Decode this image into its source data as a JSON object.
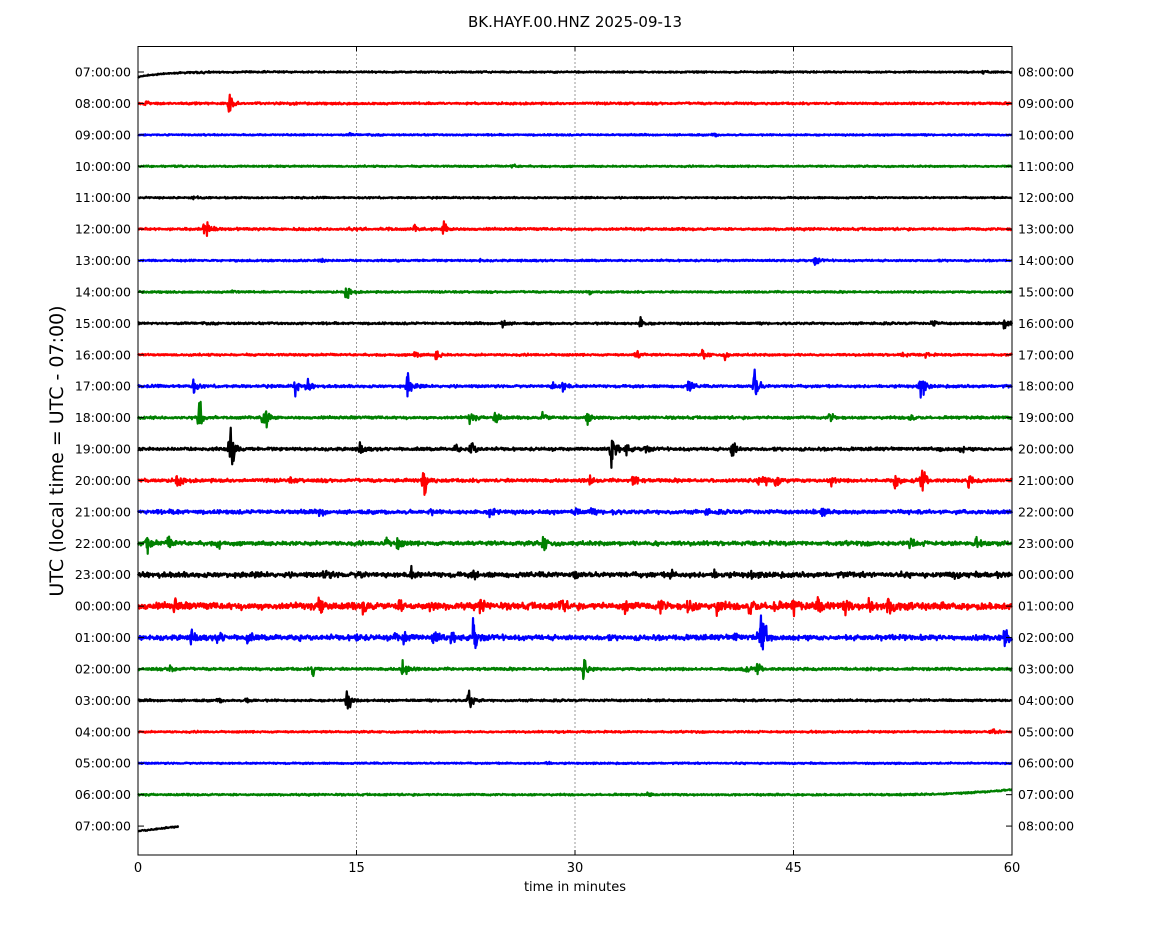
{
  "chart_data": {
    "type": "line",
    "title": "BK.HAYF.00.HNZ 2025-09-13",
    "xlabel": "time in minutes",
    "ylabel": "UTC (local time = UTC - 07:00)",
    "xlim": [
      0,
      60
    ],
    "x_ticks": [
      0,
      15,
      30,
      45,
      60
    ],
    "x_tick_labels": [
      "0",
      "15",
      "30",
      "45",
      "60"
    ],
    "grid": "vertical dotted lines at 15, 30, 45",
    "trace_colors": [
      "#000000",
      "#ff0000",
      "#0000ff",
      "#008000"
    ],
    "left_labels": [
      "07:00:00",
      "08:00:00",
      "09:00:00",
      "10:00:00",
      "11:00:00",
      "12:00:00",
      "13:00:00",
      "14:00:00",
      "15:00:00",
      "16:00:00",
      "17:00:00",
      "18:00:00",
      "19:00:00",
      "20:00:00",
      "21:00:00",
      "22:00:00",
      "23:00:00",
      "00:00:00",
      "01:00:00",
      "02:00:00",
      "03:00:00",
      "04:00:00",
      "05:00:00",
      "06:00:00",
      "07:00:00"
    ],
    "right_labels": [
      "08:00:00",
      "09:00:00",
      "10:00:00",
      "11:00:00",
      "12:00:00",
      "13:00:00",
      "14:00:00",
      "15:00:00",
      "16:00:00",
      "17:00:00",
      "18:00:00",
      "19:00:00",
      "20:00:00",
      "21:00:00",
      "22:00:00",
      "23:00:00",
      "00:00:00",
      "01:00:00",
      "02:00:00",
      "03:00:00",
      "04:00:00",
      "05:00:00",
      "06:00:00",
      "07:00:00",
      "08:00:00"
    ],
    "traces": [
      {
        "row": 0,
        "noise": 0.6,
        "events": [
          [
            4.5,
            0.8
          ],
          [
            58,
            1.5
          ]
        ]
      },
      {
        "row": 1,
        "noise": 0.8,
        "events": [
          [
            0.5,
            2
          ],
          [
            6.2,
            9
          ],
          [
            10.5,
            1.5
          ]
        ]
      },
      {
        "row": 2,
        "noise": 0.6,
        "events": [
          [
            14.5,
            1
          ],
          [
            39.5,
            1.5
          ]
        ]
      },
      {
        "row": 3,
        "noise": 0.6,
        "events": [
          [
            25.7,
            1.5
          ]
        ]
      },
      {
        "row": 4,
        "noise": 0.6,
        "events": [
          [
            3.8,
            2
          ]
        ]
      },
      {
        "row": 5,
        "noise": 0.9,
        "events": [
          [
            4.6,
            11
          ],
          [
            14.5,
            1.5
          ],
          [
            17,
            2
          ],
          [
            19,
            2.5
          ],
          [
            21,
            8
          ]
        ]
      },
      {
        "row": 6,
        "noise": 0.7,
        "events": [
          [
            12.5,
            3
          ],
          [
            23.5,
            1
          ],
          [
            46.5,
            4
          ]
        ]
      },
      {
        "row": 7,
        "noise": 0.7,
        "events": [
          [
            6.5,
            1.5
          ],
          [
            14.3,
            7
          ],
          [
            31,
            1.5
          ]
        ]
      },
      {
        "row": 8,
        "noise": 0.8,
        "events": [
          [
            25,
            4
          ],
          [
            34.5,
            5
          ],
          [
            54.5,
            3
          ],
          [
            59.5,
            6
          ]
        ]
      },
      {
        "row": 9,
        "noise": 0.8,
        "events": [
          [
            19,
            4
          ],
          [
            20.5,
            5
          ],
          [
            34.2,
            5
          ],
          [
            38.8,
            5
          ],
          [
            40.3,
            3
          ],
          [
            52.5,
            2.5
          ],
          [
            54,
            3
          ]
        ]
      },
      {
        "row": 10,
        "noise": 1.0,
        "events": [
          [
            3.8,
            6
          ],
          [
            10.8,
            7
          ],
          [
            11.6,
            6
          ],
          [
            18.5,
            12
          ],
          [
            28.5,
            4
          ],
          [
            29.2,
            6
          ],
          [
            37.8,
            7
          ],
          [
            42.3,
            18
          ],
          [
            53.7,
            14
          ]
        ]
      },
      {
        "row": 11,
        "noise": 1.0,
        "events": [
          [
            4.2,
            14
          ],
          [
            8.6,
            15
          ],
          [
            22.8,
            6
          ],
          [
            24.5,
            8
          ],
          [
            27.8,
            5
          ],
          [
            30.8,
            9
          ],
          [
            47.5,
            5
          ],
          [
            53,
            4
          ]
        ]
      },
      {
        "row": 12,
        "noise": 1.2,
        "events": [
          [
            6.3,
            22
          ],
          [
            15.2,
            6
          ],
          [
            21.8,
            4
          ],
          [
            22.8,
            10
          ],
          [
            32.5,
            18
          ],
          [
            33.5,
            5
          ],
          [
            34.8,
            4
          ],
          [
            40.8,
            9
          ],
          [
            55,
            2
          ],
          [
            56.5,
            3
          ]
        ]
      },
      {
        "row": 13,
        "noise": 1.3,
        "events": [
          [
            2.7,
            7
          ],
          [
            10.5,
            2
          ],
          [
            19.6,
            16
          ],
          [
            31,
            4
          ],
          [
            34,
            6
          ],
          [
            42.5,
            3
          ],
          [
            43,
            5
          ],
          [
            43.8,
            8
          ],
          [
            47.5,
            5
          ],
          [
            52,
            7
          ],
          [
            53.8,
            10
          ],
          [
            57,
            5
          ]
        ]
      },
      {
        "row": 14,
        "noise": 1.5,
        "events": [
          [
            2.5,
            2
          ],
          [
            12.5,
            4
          ],
          [
            20,
            2
          ],
          [
            24.2,
            6
          ],
          [
            30,
            3
          ],
          [
            31,
            3
          ],
          [
            32.5,
            2
          ],
          [
            39,
            2
          ],
          [
            47,
            3
          ]
        ]
      },
      {
        "row": 15,
        "noise": 1.6,
        "events": [
          [
            0.6,
            9
          ],
          [
            2.1,
            6
          ],
          [
            5.5,
            3
          ],
          [
            17,
            4
          ],
          [
            17.8,
            6
          ],
          [
            27.8,
            8
          ],
          [
            35.5,
            2
          ],
          [
            53,
            4
          ],
          [
            57.5,
            3
          ]
        ]
      },
      {
        "row": 16,
        "noise": 2.0,
        "events": [
          [
            12.8,
            5
          ],
          [
            15.2,
            3
          ],
          [
            18.7,
            6
          ],
          [
            23,
            3
          ],
          [
            30,
            3
          ],
          [
            36.5,
            4
          ],
          [
            39.5,
            3
          ],
          [
            42,
            3
          ],
          [
            56,
            2
          ],
          [
            59,
            3
          ]
        ]
      },
      {
        "row": 17,
        "noise": 2.6,
        "events": [
          [
            2.5,
            5
          ],
          [
            12.5,
            12
          ],
          [
            15.5,
            6
          ],
          [
            18,
            5
          ],
          [
            20,
            5
          ],
          [
            23.5,
            5
          ],
          [
            29,
            6
          ],
          [
            33.5,
            8
          ],
          [
            35.8,
            7
          ],
          [
            37.8,
            9
          ],
          [
            39.8,
            8
          ],
          [
            42,
            10
          ],
          [
            43.5,
            7
          ],
          [
            45,
            6
          ],
          [
            46.7,
            9
          ],
          [
            48.5,
            6
          ],
          [
            50.2,
            8
          ],
          [
            51.5,
            12
          ],
          [
            52.8,
            7
          ]
        ]
      },
      {
        "row": 18,
        "noise": 2.0,
        "events": [
          [
            3.7,
            5
          ],
          [
            5.5,
            6
          ],
          [
            7.5,
            5
          ],
          [
            11,
            4
          ],
          [
            15,
            3
          ],
          [
            17.5,
            5
          ],
          [
            18.3,
            7
          ],
          [
            20.3,
            8
          ],
          [
            21.5,
            5
          ],
          [
            23,
            16
          ],
          [
            41,
            3
          ],
          [
            42.5,
            4
          ],
          [
            42.8,
            26
          ],
          [
            59.5,
            8
          ]
        ]
      },
      {
        "row": 19,
        "noise": 1.0,
        "events": [
          [
            2.2,
            5
          ],
          [
            12,
            5
          ],
          [
            18.2,
            14
          ],
          [
            30.6,
            9
          ],
          [
            41.5,
            4
          ],
          [
            42.5,
            4
          ]
        ]
      },
      {
        "row": 20,
        "noise": 0.8,
        "events": [
          [
            5.5,
            2
          ],
          [
            7.5,
            3
          ],
          [
            14.3,
            11
          ],
          [
            22.7,
            12
          ]
        ]
      },
      {
        "row": 21,
        "noise": 0.7,
        "events": [
          [
            29,
            1.5
          ],
          [
            58.5,
            5
          ]
        ]
      },
      {
        "row": 22,
        "noise": 0.6,
        "events": [
          [
            28,
            1.5
          ]
        ]
      },
      {
        "row": 23,
        "noise": 0.7,
        "events": [
          [
            35,
            1.2
          ]
        ]
      },
      {
        "row": 24,
        "noise": 0.6,
        "events": [],
        "end_minute": 2.8
      }
    ]
  }
}
